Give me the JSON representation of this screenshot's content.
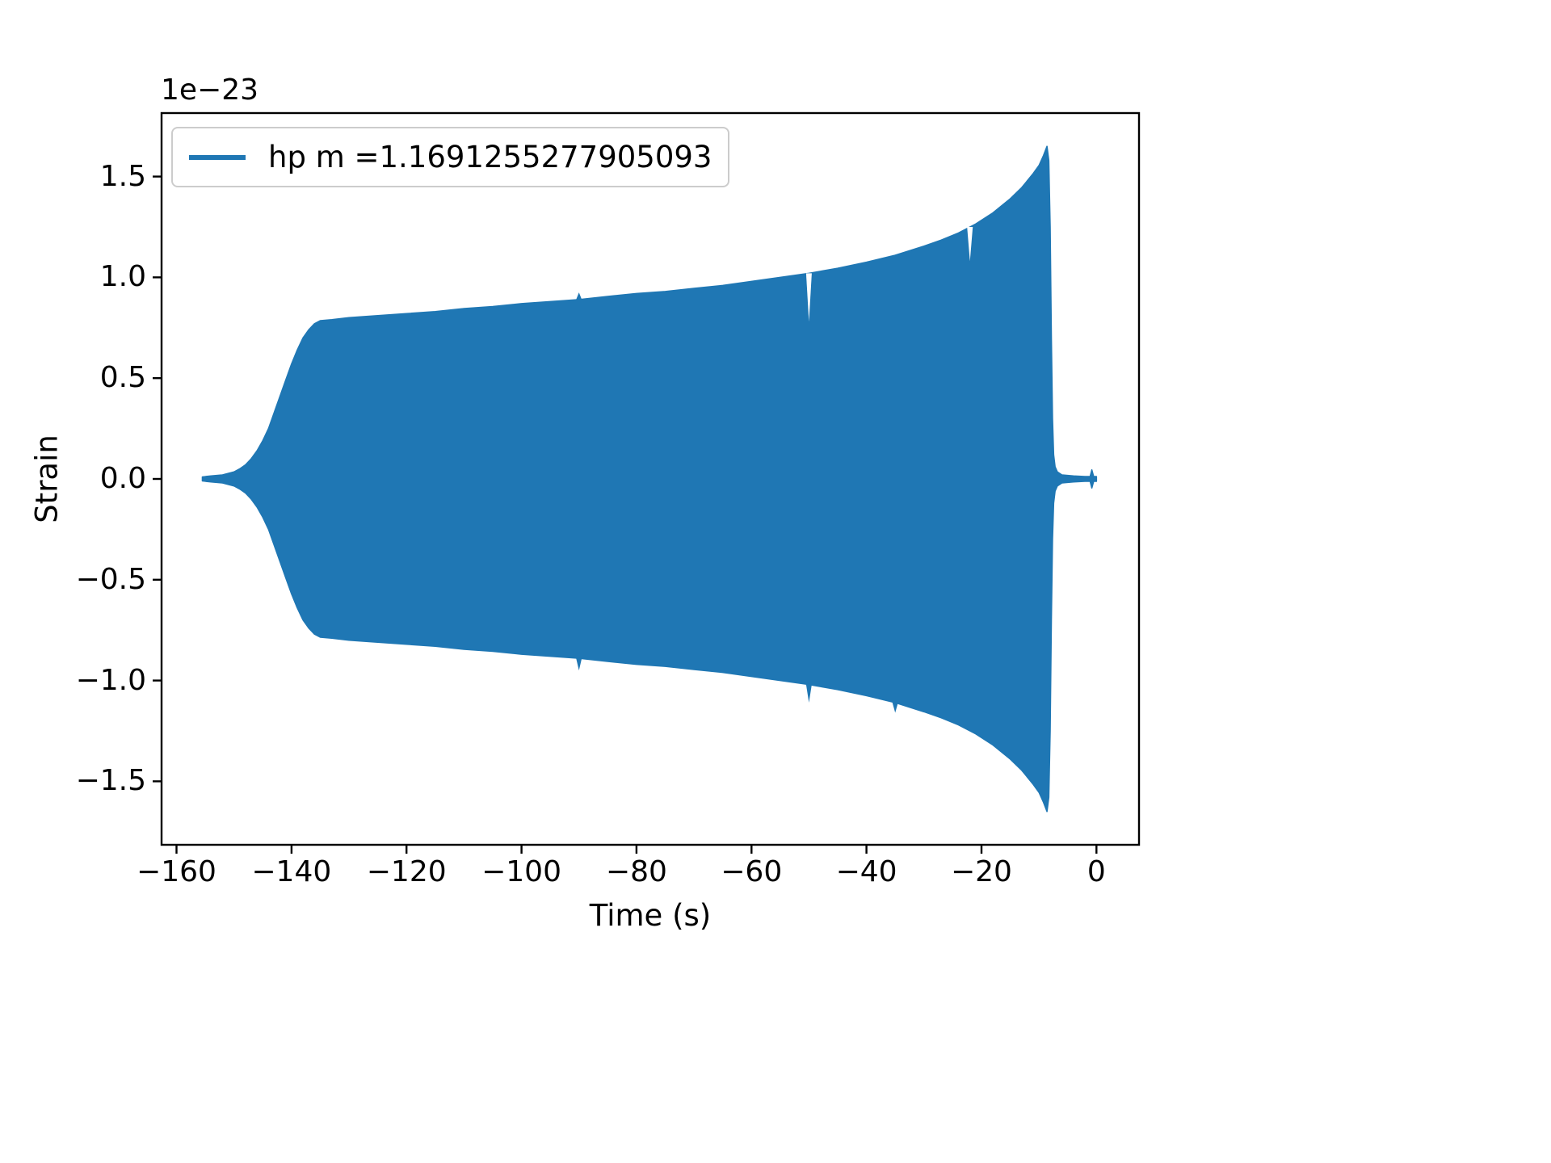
{
  "chart_data": {
    "type": "line",
    "title": "",
    "xlabel": "Time (s)",
    "ylabel": "Strain",
    "y_offset_text": "1e−23",
    "xlim": [
      -162.6,
      7.4
    ],
    "ylim": [
      -1.815,
      1.815
    ],
    "grid": false,
    "background": "#ffffff",
    "legend": {
      "location": "upper left",
      "label": "hp m =1.1691255277905093",
      "line_color": "#1f77b4"
    },
    "x_ticks": [
      {
        "v": -160,
        "label": "−160"
      },
      {
        "v": -140,
        "label": "−140"
      },
      {
        "v": -120,
        "label": "−120"
      },
      {
        "v": -100,
        "label": "−100"
      },
      {
        "v": -80,
        "label": "−80"
      },
      {
        "v": -60,
        "label": "−60"
      },
      {
        "v": -40,
        "label": "−40"
      },
      {
        "v": -20,
        "label": "−20"
      },
      {
        "v": 0,
        "label": "0"
      }
    ],
    "y_ticks": [
      {
        "v": -1.5,
        "label": "−1.5"
      },
      {
        "v": -1.0,
        "label": "−1.0"
      },
      {
        "v": -0.5,
        "label": "−0.5"
      },
      {
        "v": 0.0,
        "label": "0.0"
      },
      {
        "v": 0.5,
        "label": "0.5"
      },
      {
        "v": 1.0,
        "label": "1.0"
      },
      {
        "v": 1.5,
        "label": "1.5"
      }
    ],
    "series": [
      {
        "name": "hp m =1.1691255277905093",
        "color": "#1f77b4",
        "representation": "dense oscillatory gravitational-wave chirp rendered as a ±amplitude envelope",
        "amplitude_scale": "1e-23",
        "envelope_t": [
          -155.5,
          -154,
          -152,
          -150,
          -149,
          -148,
          -147,
          -146,
          -145,
          -144,
          -143,
          -142,
          -141,
          -140,
          -139,
          -138,
          -137,
          -136,
          -135,
          -133,
          -130,
          -125,
          -120,
          -115,
          -110,
          -105,
          -100,
          -95,
          -90,
          -85,
          -80,
          -75,
          -70,
          -65,
          -60,
          -55,
          -50,
          -45,
          -40,
          -35,
          -30,
          -27,
          -24,
          -21,
          -18,
          -15,
          -13,
          -11,
          -10,
          -9.2,
          -8.6,
          -8.3,
          -8.05,
          -7.85,
          -7.65,
          -7.45,
          -7.2,
          -6.8,
          -6,
          -4,
          -2,
          -1.1,
          -0.8,
          -0.5,
          0
        ],
        "envelope_a": [
          0.01,
          0.015,
          0.02,
          0.035,
          0.05,
          0.07,
          0.1,
          0.14,
          0.19,
          0.25,
          0.33,
          0.41,
          0.49,
          0.57,
          0.64,
          0.7,
          0.74,
          0.77,
          0.785,
          0.79,
          0.8,
          0.81,
          0.82,
          0.83,
          0.845,
          0.855,
          0.87,
          0.88,
          0.89,
          0.905,
          0.92,
          0.93,
          0.945,
          0.96,
          0.98,
          1.0,
          1.02,
          1.045,
          1.075,
          1.11,
          1.155,
          1.185,
          1.22,
          1.265,
          1.32,
          1.39,
          1.445,
          1.515,
          1.555,
          1.605,
          1.65,
          1.58,
          1.25,
          0.7,
          0.3,
          0.12,
          0.06,
          0.035,
          0.02,
          0.015,
          0.012,
          0.012,
          0.045,
          0.012,
          0.012
        ]
      }
    ],
    "glitches": [
      {
        "t": -90,
        "side": "top",
        "type": "spike",
        "size": 0.035
      },
      {
        "t": -90,
        "side": "bottom",
        "type": "spike",
        "size": 0.06
      },
      {
        "t": -50,
        "side": "top",
        "type": "notch",
        "size": 0.24
      },
      {
        "t": -50,
        "side": "bottom",
        "type": "spike",
        "size": 0.09
      },
      {
        "t": -35,
        "side": "bottom",
        "type": "spike",
        "size": 0.05
      },
      {
        "t": -22,
        "side": "top",
        "type": "notch",
        "size": 0.17
      }
    ]
  }
}
